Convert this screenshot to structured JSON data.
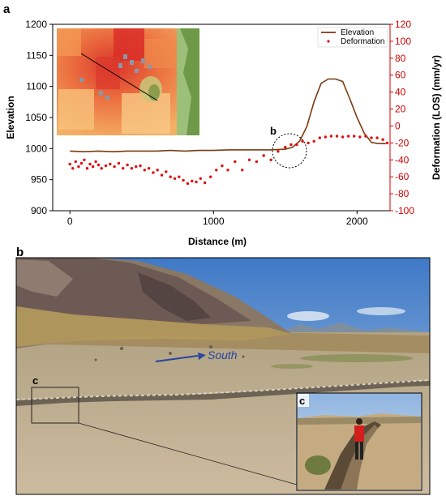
{
  "panels": {
    "top_label": "a",
    "bottom_label": "b"
  },
  "chart_data": {
    "type": "line",
    "title": "",
    "xlabel": "Distance (m)",
    "ylabel": "Elevation",
    "y2label": "Deformation (LOS) (mm/yr)",
    "xlim": [
      -120,
      2230
    ],
    "ylim": [
      900,
      1200
    ],
    "y2lim": [
      -100,
      120
    ],
    "xticks": [
      "0",
      "1000",
      "2000"
    ],
    "xtick_values": [
      0,
      1000,
      2000
    ],
    "yticks": [
      "900",
      "950",
      "1000",
      "1050",
      "1100",
      "1150",
      "1200"
    ],
    "ytick_values": [
      900,
      950,
      1000,
      1050,
      1100,
      1150,
      1200
    ],
    "y2ticks": [
      "-100",
      "-80",
      "-60",
      "-40",
      "-20",
      "0",
      "20",
      "40",
      "60",
      "80",
      "100",
      "120"
    ],
    "y2tick_values": [
      -100,
      -80,
      -60,
      -40,
      -20,
      0,
      20,
      40,
      60,
      80,
      100,
      120
    ],
    "legend_position": "top-right",
    "annotation": "b",
    "series": [
      {
        "name": "Elevation",
        "axis": "left",
        "style": "line",
        "color": "#7a3a10",
        "x": [
          0,
          100,
          200,
          300,
          400,
          500,
          600,
          700,
          800,
          900,
          1000,
          1100,
          1200,
          1300,
          1400,
          1500,
          1550,
          1600,
          1650,
          1700,
          1750,
          1800,
          1850,
          1900,
          1950,
          2000,
          2050,
          2100,
          2150,
          2200
        ],
        "y": [
          996,
          995,
          996,
          995,
          996,
          996,
          996,
          997,
          996,
          997,
          997,
          998,
          998,
          998,
          998,
          999,
          1002,
          1012,
          1035,
          1075,
          1105,
          1112,
          1112,
          1108,
          1080,
          1050,
          1025,
          1010,
          1008,
          1008
        ]
      },
      {
        "name": "Deformation",
        "axis": "right",
        "style": "points",
        "color": "#e01010",
        "x": [
          0,
          20,
          40,
          60,
          80,
          100,
          120,
          140,
          160,
          180,
          200,
          220,
          250,
          280,
          310,
          340,
          370,
          400,
          430,
          460,
          490,
          520,
          550,
          580,
          610,
          640,
          670,
          700,
          730,
          760,
          790,
          820,
          850,
          880,
          910,
          940,
          980,
          1020,
          1060,
          1100,
          1150,
          1200,
          1250,
          1300,
          1350,
          1400,
          1450,
          1500,
          1540,
          1580,
          1620,
          1660,
          1700,
          1740,
          1780,
          1820,
          1860,
          1900,
          1940,
          1980,
          2020,
          2060,
          2100,
          2140,
          2180,
          2210
        ],
        "y": [
          -45,
          -50,
          -42,
          -48,
          -44,
          -40,
          -50,
          -45,
          -48,
          -42,
          -46,
          -50,
          -47,
          -45,
          -48,
          -44,
          -50,
          -46,
          -50,
          -48,
          -47,
          -52,
          -50,
          -55,
          -52,
          -58,
          -54,
          -60,
          -62,
          -60,
          -64,
          -68,
          -65,
          -66,
          -62,
          -67,
          -60,
          -52,
          -47,
          -52,
          -42,
          -52,
          -40,
          -42,
          -35,
          -40,
          -30,
          -25,
          -22,
          -22,
          -18,
          -20,
          -18,
          -14,
          -13,
          -12,
          -12,
          -13,
          -12,
          -12,
          -13,
          -12,
          -14,
          -14,
          -16,
          -20
        ]
      }
    ]
  },
  "photo": {
    "arrow_label": "South",
    "inset_marker": "c",
    "inset_label": "c"
  },
  "colors": {
    "elevation": "#7a3a10",
    "deformation": "#e01010",
    "right_axis": "#cc0000",
    "south_arrow": "#2846a0"
  }
}
